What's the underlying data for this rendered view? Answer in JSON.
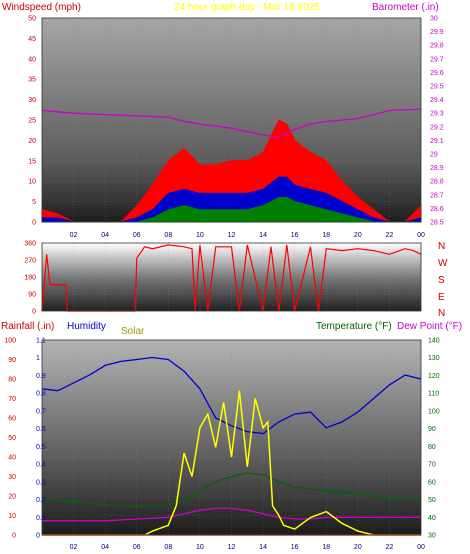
{
  "header": {
    "title": "24 hour graph day : Mar 18 2025",
    "left_label": "Windspeed (mph)",
    "right_label": "Barometer (.in)"
  },
  "colors": {
    "windspeed_title": "#cc0000",
    "title": "#ffff00",
    "barometer": "#cc00cc",
    "wind_dir": "#ff0000",
    "rain": "#cc0000",
    "humidity": "#0000cc",
    "solar": "#999900",
    "temperature": "#006600",
    "dewpoint": "#cc00cc"
  },
  "compass": [
    "N",
    "W",
    "S",
    "E",
    "N"
  ],
  "bottom_labels": {
    "rainfall": "Rainfall (.in)",
    "humidity": "Humidity",
    "solar": "Solar",
    "temperature": "Temperature (°F)",
    "dewpoint": "Dew Point (°F)"
  },
  "chart_data": [
    {
      "type": "line",
      "name": "wind_barometer",
      "xticks": [
        "02",
        "04",
        "06",
        "08",
        "10",
        "12",
        "14",
        "16",
        "18",
        "20",
        "22",
        "00"
      ],
      "y_left": {
        "label": "Windspeed (mph)",
        "range": [
          0,
          50
        ],
        "ticks": [
          "0",
          "5",
          "10",
          "15",
          "20",
          "25",
          "30",
          "35",
          "40",
          "45",
          "50"
        ]
      },
      "y_right": {
        "label": "Barometer (.in)",
        "range": [
          28.5,
          30.0
        ],
        "ticks": [
          "28.5",
          "28.6",
          "28.7",
          "28.8",
          "28.9",
          "29",
          "29.1",
          "29.2",
          "29.3",
          "29.4",
          "29.5",
          "29.6",
          "29.7",
          "29.8",
          "29.9",
          "30"
        ]
      },
      "series": [
        {
          "name": "Barometer (.in)",
          "axis": "right",
          "x": [
            0,
            2,
            4,
            6,
            8,
            9,
            10,
            12,
            14,
            15,
            15.3,
            16,
            17,
            18,
            20,
            22,
            24
          ],
          "y": [
            29.32,
            29.3,
            29.29,
            29.28,
            29.27,
            29.24,
            29.22,
            29.19,
            29.14,
            29.12,
            29.14,
            29.18,
            29.22,
            29.24,
            29.26,
            29.32,
            29.33
          ]
        },
        {
          "name": "Wind gust",
          "axis": "left",
          "x": [
            0,
            1,
            2,
            3,
            4,
            5,
            6,
            7,
            8,
            9,
            10,
            11,
            12,
            13,
            14,
            15,
            15.5,
            16,
            17,
            18,
            19,
            20,
            21,
            22,
            23,
            24
          ],
          "y": [
            3,
            2,
            0,
            0,
            0,
            0,
            4,
            9,
            15,
            18,
            14,
            14,
            15,
            15,
            17,
            25,
            24,
            20,
            17,
            15,
            10,
            6,
            3,
            0,
            0,
            4
          ]
        },
        {
          "name": "Wind avg",
          "axis": "left",
          "x": [
            0,
            1,
            2,
            3,
            4,
            5,
            6,
            7,
            8,
            9,
            10,
            11,
            12,
            13,
            14,
            15,
            15.5,
            16,
            17,
            18,
            19,
            20,
            21,
            22,
            23,
            24
          ],
          "y": [
            1,
            1,
            0,
            0,
            0,
            0,
            1,
            3,
            7,
            8,
            7,
            7,
            7,
            7,
            8,
            11,
            11,
            9,
            8,
            7,
            5,
            3,
            1,
            0,
            0,
            1
          ]
        },
        {
          "name": "Wind min",
          "axis": "left",
          "x": [
            0,
            1,
            2,
            3,
            4,
            5,
            6,
            7,
            8,
            9,
            10,
            11,
            12,
            13,
            14,
            15,
            15.5,
            16,
            17,
            18,
            19,
            20,
            21,
            22,
            23,
            24
          ],
          "y": [
            0,
            0,
            0,
            0,
            0,
            0,
            0,
            1,
            3,
            4,
            3,
            3,
            3,
            3,
            4,
            6,
            6,
            5,
            4,
            3,
            2,
            1,
            0,
            0,
            0,
            0
          ]
        }
      ]
    },
    {
      "type": "line",
      "name": "wind_direction",
      "y_range": [
        0,
        360
      ],
      "yticks": [
        "0",
        "90",
        "180",
        "270",
        "360"
      ],
      "series": [
        {
          "name": "Wind direction",
          "x": [
            0,
            0.3,
            0.5,
            1.5,
            1.6,
            4.5,
            4.6,
            5.9,
            6,
            6.5,
            7,
            8,
            9,
            9.5,
            9.7,
            10,
            10.5,
            11,
            12,
            12.5,
            13,
            14,
            14.5,
            15,
            15.5,
            16,
            17,
            17.5,
            18,
            19,
            20,
            21,
            22,
            23,
            23.5,
            24
          ],
          "y": [
            0,
            300,
            140,
            140,
            0,
            0,
            0,
            0,
            280,
            340,
            330,
            350,
            340,
            330,
            0,
            350,
            0,
            340,
            340,
            0,
            350,
            0,
            340,
            0,
            350,
            0,
            340,
            0,
            330,
            320,
            330,
            320,
            300,
            330,
            320,
            300
          ]
        }
      ]
    },
    {
      "type": "line",
      "name": "rain_humidity_solar_temp",
      "y_left_outer": {
        "label": "Rainfall (.in)",
        "range": [
          0,
          100
        ],
        "ticks": [
          "0",
          "10",
          "20",
          "30",
          "40",
          "50",
          "60",
          "70",
          "80",
          "90",
          "100"
        ]
      },
      "y_left_inner": {
        "label": "Humidity",
        "range": [
          0,
          1.1
        ],
        "ticks": [
          "0",
          "0.1",
          "0.2",
          "0.3",
          "0.4",
          "0.5",
          "0.6",
          "0.7",
          "0.8",
          "0.9",
          "1",
          "1.1"
        ]
      },
      "y_right": {
        "label": "Temperature (°F)",
        "range": [
          30,
          140
        ],
        "ticks": [
          "30",
          "40",
          "50",
          "60",
          "70",
          "80",
          "90",
          "100",
          "110",
          "120",
          "130",
          "140"
        ]
      },
      "series": [
        {
          "name": "Humidity",
          "axis": "outer",
          "x": [
            0,
            1,
            2,
            3,
            4,
            5,
            6,
            7,
            8,
            9,
            10,
            11,
            12,
            13,
            14,
            15,
            16,
            17,
            18,
            19,
            20,
            21,
            22,
            23,
            24
          ],
          "y": [
            75,
            74,
            78,
            82,
            87,
            89,
            90,
            91,
            90,
            84,
            75,
            60,
            56,
            53,
            52,
            58,
            62,
            63,
            55,
            58,
            63,
            70,
            77,
            82,
            80
          ]
        },
        {
          "name": "Temperature (°F)",
          "axis": "right",
          "x": [
            0,
            2,
            4,
            6,
            8,
            9,
            10,
            11,
            12,
            13,
            14,
            15,
            16,
            17,
            18,
            20,
            22,
            24
          ],
          "y": [
            50,
            49,
            47,
            46,
            47,
            50,
            55,
            60,
            63,
            65,
            64,
            60,
            57,
            56,
            55,
            53,
            51,
            50
          ]
        },
        {
          "name": "Dew Point (°F)",
          "axis": "right",
          "x": [
            0,
            2,
            4,
            6,
            8,
            9,
            10,
            11,
            12,
            13,
            14,
            15,
            16,
            17,
            18,
            20,
            22,
            24
          ],
          "y": [
            38,
            38,
            38,
            39,
            40,
            42,
            44,
            45,
            45,
            44,
            42,
            40,
            39,
            39,
            40,
            40,
            40,
            40
          ]
        },
        {
          "name": "Solar",
          "axis": "outer",
          "x": [
            0,
            5,
            6.5,
            7,
            8,
            8.5,
            9,
            9.5,
            10,
            10.5,
            11,
            11.5,
            12,
            12.5,
            13,
            13.5,
            14,
            14.3,
            14.6,
            15,
            15.3,
            16,
            17,
            18,
            19,
            20,
            21,
            24
          ],
          "y": [
            0,
            0,
            0,
            2,
            5,
            15,
            42,
            30,
            55,
            62,
            45,
            68,
            40,
            74,
            35,
            70,
            55,
            58,
            15,
            10,
            5,
            3,
            9,
            12,
            6,
            2,
            0,
            0
          ]
        },
        {
          "name": "Rainfall (.in)",
          "axis": "outer",
          "x": [
            0,
            24
          ],
          "y": [
            0,
            0
          ]
        }
      ]
    }
  ]
}
